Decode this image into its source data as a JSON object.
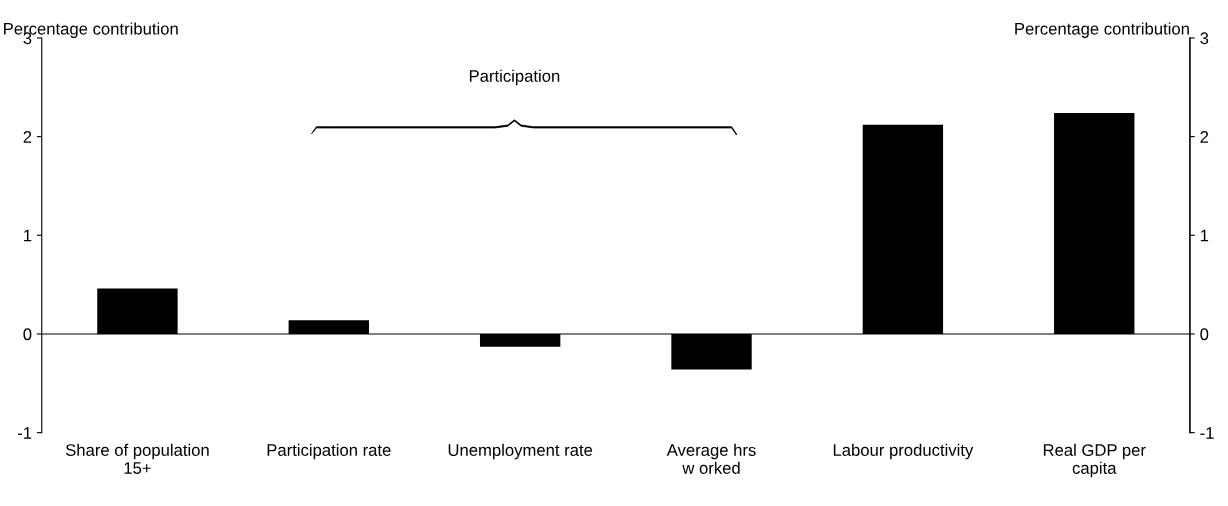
{
  "chart_data": {
    "type": "bar",
    "ylabel": "Percentage contribution",
    "y2label": "Percentage contribution",
    "categories": [
      "Share of population\n15+",
      "Participation rate",
      "Unemployment rate",
      "Average hrs\nw orked",
      "Labour productivity",
      "Real GDP per\ncapita"
    ],
    "values": [
      0.46,
      0.14,
      -0.13,
      -0.36,
      2.12,
      2.24
    ],
    "color": "#000000",
    "ylim": [
      -1,
      3
    ],
    "yticks": [
      -1,
      0,
      1,
      2,
      3
    ],
    "y2lim": [
      -1,
      3
    ],
    "y2ticks": [
      -1,
      0,
      1,
      2,
      3
    ],
    "annotations": [
      "Participation"
    ]
  }
}
